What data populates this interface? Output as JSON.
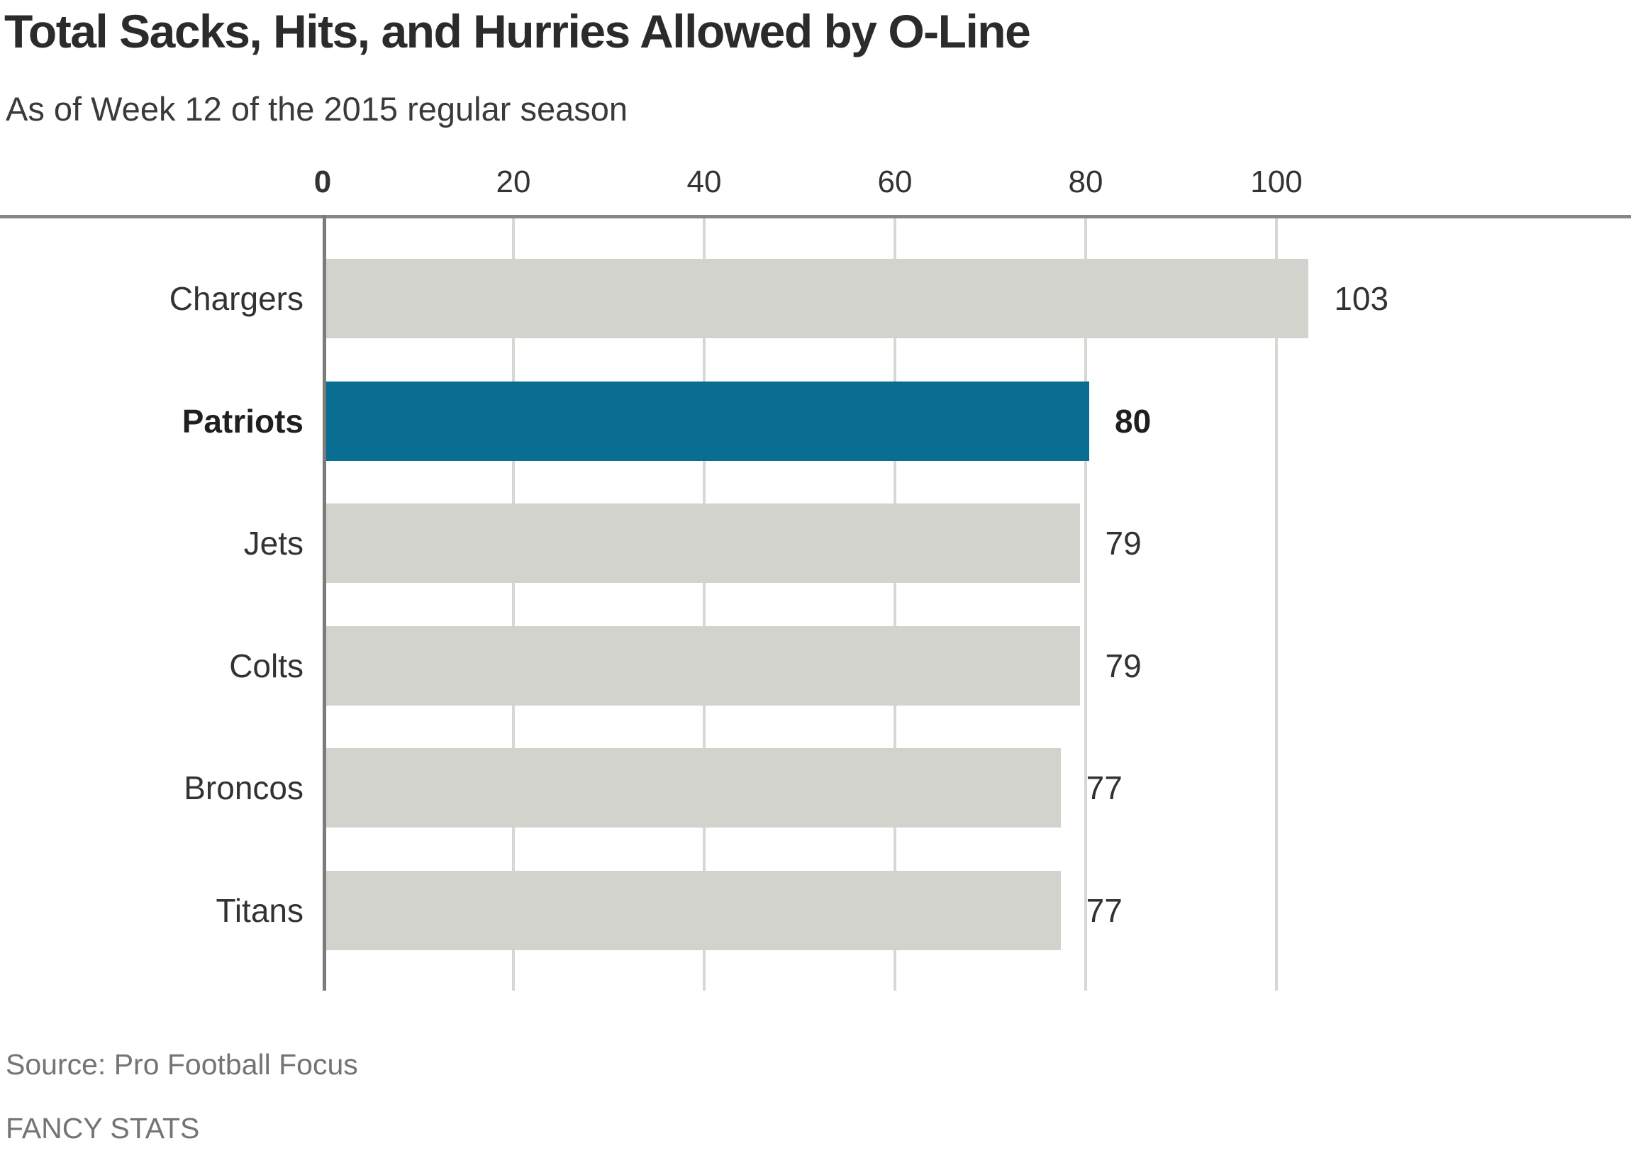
{
  "header": {
    "title": "Total Sacks, Hits, and Hurries Allowed by O-Line",
    "subtitle": "As of Week 12 of the 2015 regular season"
  },
  "chart_data": {
    "type": "bar",
    "orientation": "horizontal",
    "title": "Total Sacks, Hits, and Hurries Allowed by O-Line",
    "subtitle": "As of Week 12 of the 2015 regular season",
    "categories": [
      "Chargers",
      "Patriots",
      "Jets",
      "Colts",
      "Broncos",
      "Titans"
    ],
    "values": [
      103,
      80,
      79,
      79,
      77,
      77
    ],
    "highlighted_category": "Patriots",
    "value_labels": "outside-end",
    "legend": "none",
    "x_axis": {
      "ticks": [
        0,
        20,
        40,
        60,
        80,
        100
      ],
      "range": [
        0,
        120
      ],
      "grid": true,
      "bold_tick": 0
    },
    "colors": {
      "bar_default": "#d3d3cd",
      "bar_highlight": "#096e92",
      "gridline": "#d7d7d3",
      "axis_line": "#7b7b7b",
      "top_rule": "#868686",
      "text_dark": "#323232",
      "text_muted": "#747474"
    }
  },
  "footer": {
    "source": "Source: Pro Football Focus",
    "branding": "FANCY STATS"
  }
}
